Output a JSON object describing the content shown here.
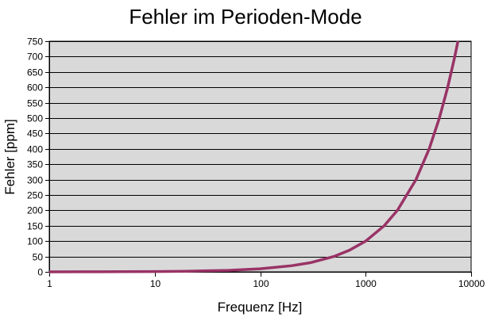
{
  "chart_data": {
    "type": "line",
    "title": "Fehler im Perioden-Mode",
    "xlabel": "Frequenz [Hz]",
    "ylabel": "Fehler [ppm]",
    "xscale": "log",
    "xlim": [
      1,
      10000
    ],
    "ylim": [
      0,
      750
    ],
    "x_ticks": [
      "1",
      "10",
      "100",
      "1000",
      "10000"
    ],
    "y_ticks": [
      "0",
      "50",
      "100",
      "150",
      "200",
      "250",
      "300",
      "350",
      "400",
      "450",
      "500",
      "550",
      "600",
      "650",
      "700",
      "750"
    ],
    "grid": {
      "horizontal": true,
      "vertical": false
    },
    "legend": null,
    "colors": {
      "plot_background": "#d9d9d9",
      "line": "#993366",
      "grid": "#000000"
    },
    "series": [
      {
        "name": "Fehler",
        "x": [
          1,
          2,
          5,
          10,
          20,
          50,
          100,
          200,
          300,
          500,
          700,
          1000,
          1500,
          2000,
          3000,
          4000,
          5000,
          6000,
          7000,
          7500
        ],
        "y": [
          0.1,
          0.2,
          0.5,
          1,
          2,
          5,
          10,
          20,
          30,
          50,
          70,
          100,
          150,
          200,
          300,
          400,
          500,
          600,
          700,
          750
        ]
      }
    ]
  }
}
